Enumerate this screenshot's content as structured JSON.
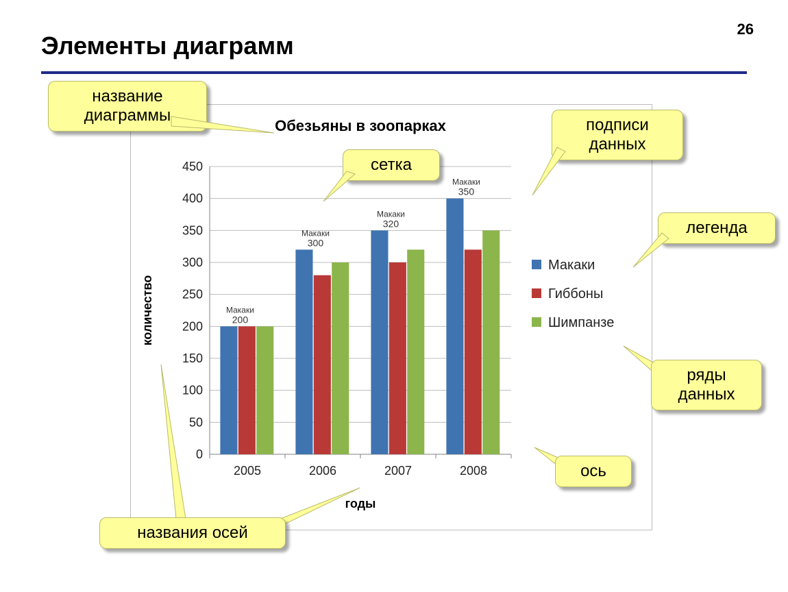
{
  "page_number": "26",
  "slide_title": "Элементы диаграмм",
  "title_rule_color": "#1f2a8a",
  "chart": {
    "type": "bar",
    "title": "Обезьяны в зоопарках",
    "title_fontsize": 22,
    "title_fontweight": "bold",
    "xlabel": "годы",
    "ylabel": "количество",
    "label_fontsize": 18,
    "label_fontweight": "bold",
    "categories": [
      "2005",
      "2006",
      "2007",
      "2008"
    ],
    "ylim": [
      0,
      450
    ],
    "ytick_step": 50,
    "tick_fontsize": 18,
    "grid_color": "#bcbcbc",
    "axis_color": "#808080",
    "frame_border_color": "#bcbcbc",
    "background_color": "#ffffff",
    "bar_group_width_ratio": 0.72,
    "series": [
      {
        "name": "Макаки",
        "color": "#3f74b1",
        "values": [
          200,
          320,
          350,
          400
        ]
      },
      {
        "name": "Гиббоны",
        "color": "#b93937",
        "values": [
          200,
          280,
          300,
          320
        ]
      },
      {
        "name": "Шимпанзе",
        "color": "#8cb54c",
        "values": [
          200,
          300,
          320,
          350
        ]
      }
    ],
    "data_label_series": "Макаки",
    "data_label_series2": "Шимпанзе",
    "data_label_fontsize": 14,
    "data_label_caption_fontsize": 12,
    "legend_fontsize": 20
  },
  "callouts": {
    "title": "название\nдиаграммы",
    "grid": "сетка",
    "data_labels": "подписи\nданных",
    "legend": "легенда",
    "series": "ряды\nданных",
    "axis": "ось",
    "axis_titles": "названия осей"
  },
  "callout_style": {
    "fill": "#feff9a",
    "stroke": "#b9b96a",
    "shadow": "rgba(0,0,0,0.35)",
    "fontsize": 24
  }
}
